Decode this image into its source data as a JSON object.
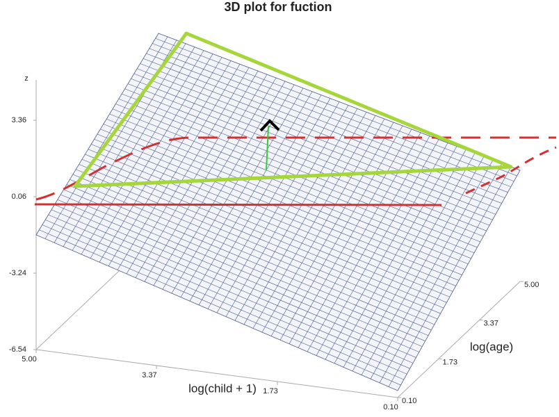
{
  "chart_data": {
    "type": "surface",
    "title": "3D plot for fuction",
    "x_label": "log(child + 1)",
    "y_label": "log(age)",
    "z_label": "z",
    "x": [
      0.1,
      5
    ],
    "y": [
      0.1,
      5
    ],
    "z": [
      [
        -6.24,
        -1.74
      ],
      [
        -1.59,
        2.1
      ]
    ],
    "xlim": [
      0.1,
      5
    ],
    "ylim": [
      0.1,
      5
    ],
    "zlim": [
      -6.54,
      5.1
    ],
    "xticks": [
      {
        "value": 5,
        "label": "5.00"
      },
      {
        "value": 3.37,
        "label": "3.37"
      },
      {
        "value": 1.73,
        "label": "1.73"
      },
      {
        "value": 0.1,
        "label": "0.10"
      }
    ],
    "yticks": [
      {
        "value": 0.1,
        "label": "0.10"
      },
      {
        "value": 1.73,
        "label": "1.73"
      },
      {
        "value": 3.37,
        "label": "3.37"
      },
      {
        "value": 5,
        "label": "5.00"
      }
    ],
    "zticks": [
      3.36,
      0.06,
      -3.24,
      -6.54
    ],
    "mesh_color": "#4b5a8c",
    "surface_color": "#f3f5fb"
  }
}
